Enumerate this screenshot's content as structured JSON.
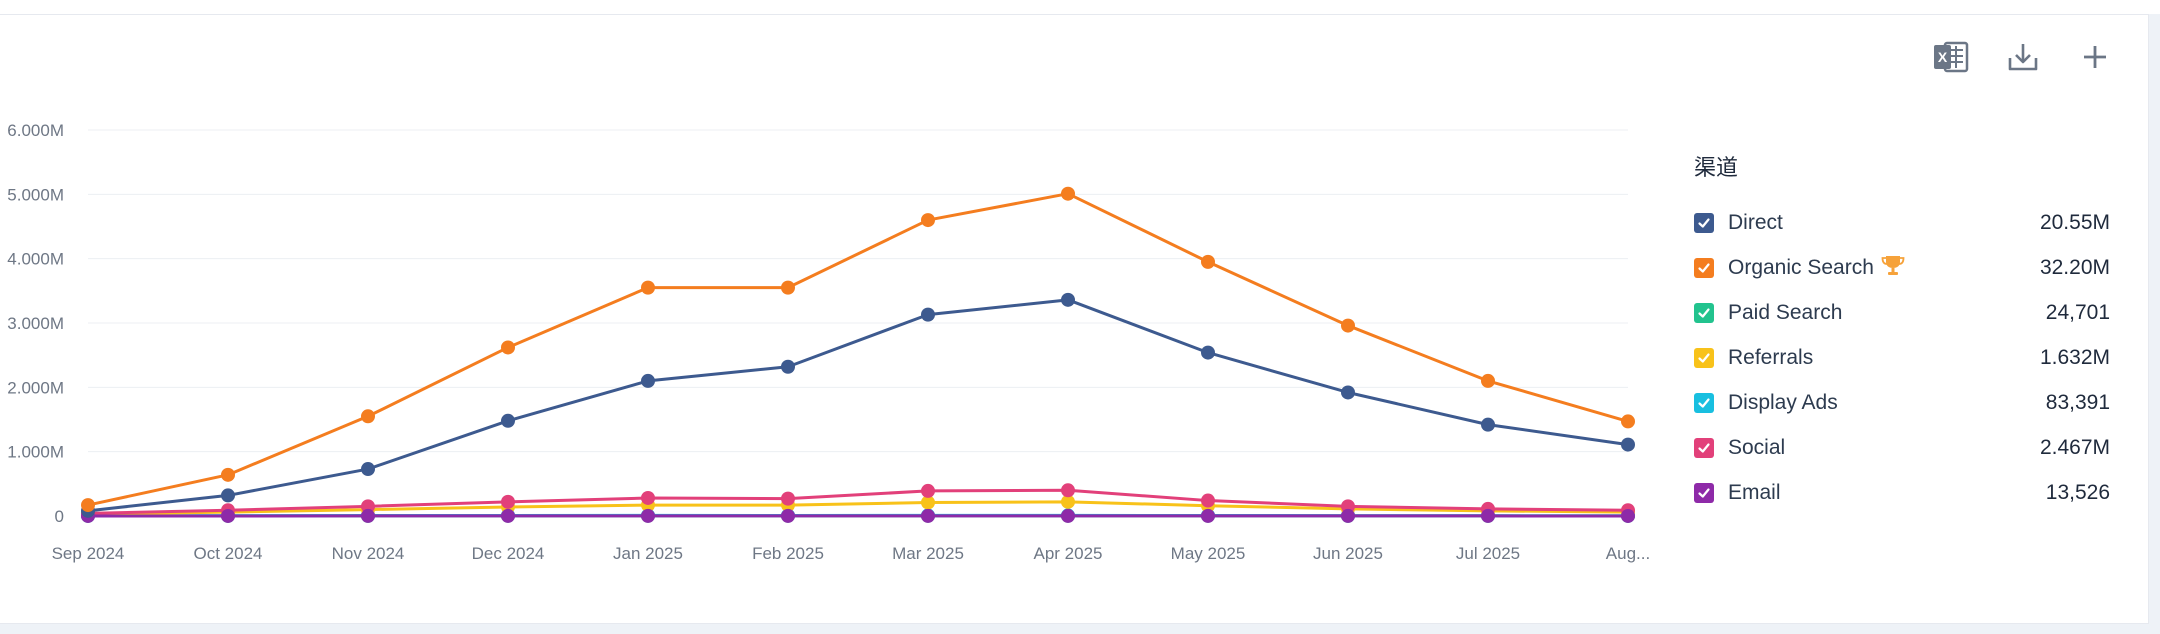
{
  "toolbar": {
    "excel_icon": "excel-export-icon",
    "download_icon": "download-icon",
    "add_icon": "plus-icon"
  },
  "legend": {
    "title": "渠道",
    "items": [
      {
        "name": "Direct",
        "value": "20.55M",
        "color": "#3d5a8f",
        "checked": true
      },
      {
        "name": "Organic Search",
        "value": "32.20M",
        "color": "#f47d1f",
        "checked": true,
        "badge": "trophy-icon",
        "badge_color": "#f6a23a"
      },
      {
        "name": "Paid Search",
        "value": "24,701",
        "color": "#22c38e",
        "checked": true
      },
      {
        "name": "Referrals",
        "value": "1.632M",
        "color": "#f8c21a",
        "checked": true
      },
      {
        "name": "Display Ads",
        "value": "83,391",
        "color": "#18bfe0",
        "checked": true
      },
      {
        "name": "Social",
        "value": "2.467M",
        "color": "#e2407a",
        "checked": true
      },
      {
        "name": "Email",
        "value": "13,526",
        "color": "#8e2aa8",
        "checked": true
      }
    ]
  },
  "chart_data": {
    "type": "line",
    "categories": [
      "Sep 2024",
      "Oct 2024",
      "Nov 2024",
      "Dec 2024",
      "Jan 2025",
      "Feb 2025",
      "Mar 2025",
      "Apr 2025",
      "May 2025",
      "Jun 2025",
      "Jul 2025",
      "Aug..."
    ],
    "y_ticks": [
      "0",
      "1.000M",
      "2.000M",
      "3.000M",
      "4.000M",
      "5.000M",
      "6.000M"
    ],
    "ylim": [
      0,
      6000000
    ],
    "grid": true,
    "legend_position": "right",
    "series": [
      {
        "name": "Direct",
        "color": "#3d5a8f",
        "values": [
          80000,
          320000,
          730000,
          1480000,
          2100000,
          2320000,
          3130000,
          3360000,
          2540000,
          1920000,
          1420000,
          1110000
        ]
      },
      {
        "name": "Organic Search",
        "color": "#f47d1f",
        "values": [
          170000,
          640000,
          1550000,
          2620000,
          3550000,
          3550000,
          4600000,
          5010000,
          3950000,
          2960000,
          2100000,
          1470000
        ]
      },
      {
        "name": "Paid Search",
        "color": "#22c38e",
        "values": [
          1000,
          1500,
          2000,
          2200,
          2400,
          2300,
          2600,
          2700,
          2300,
          2000,
          1800,
          1500
        ]
      },
      {
        "name": "Referrals",
        "color": "#f8c21a",
        "values": [
          30000,
          60000,
          100000,
          140000,
          170000,
          170000,
          210000,
          220000,
          160000,
          110000,
          80000,
          60000
        ]
      },
      {
        "name": "Display Ads",
        "color": "#18bfe0",
        "values": [
          3000,
          5000,
          7000,
          8000,
          9000,
          8500,
          9000,
          9500,
          8000,
          6000,
          5000,
          4000
        ]
      },
      {
        "name": "Social",
        "color": "#e2407a",
        "values": [
          40000,
          90000,
          150000,
          220000,
          280000,
          270000,
          390000,
          400000,
          240000,
          150000,
          110000,
          90000
        ]
      },
      {
        "name": "Email",
        "color": "#8e2aa8",
        "values": [
          500,
          800,
          1000,
          1200,
          1400,
          1300,
          1500,
          1600,
          1300,
          1100,
          1000,
          800
        ]
      }
    ]
  }
}
